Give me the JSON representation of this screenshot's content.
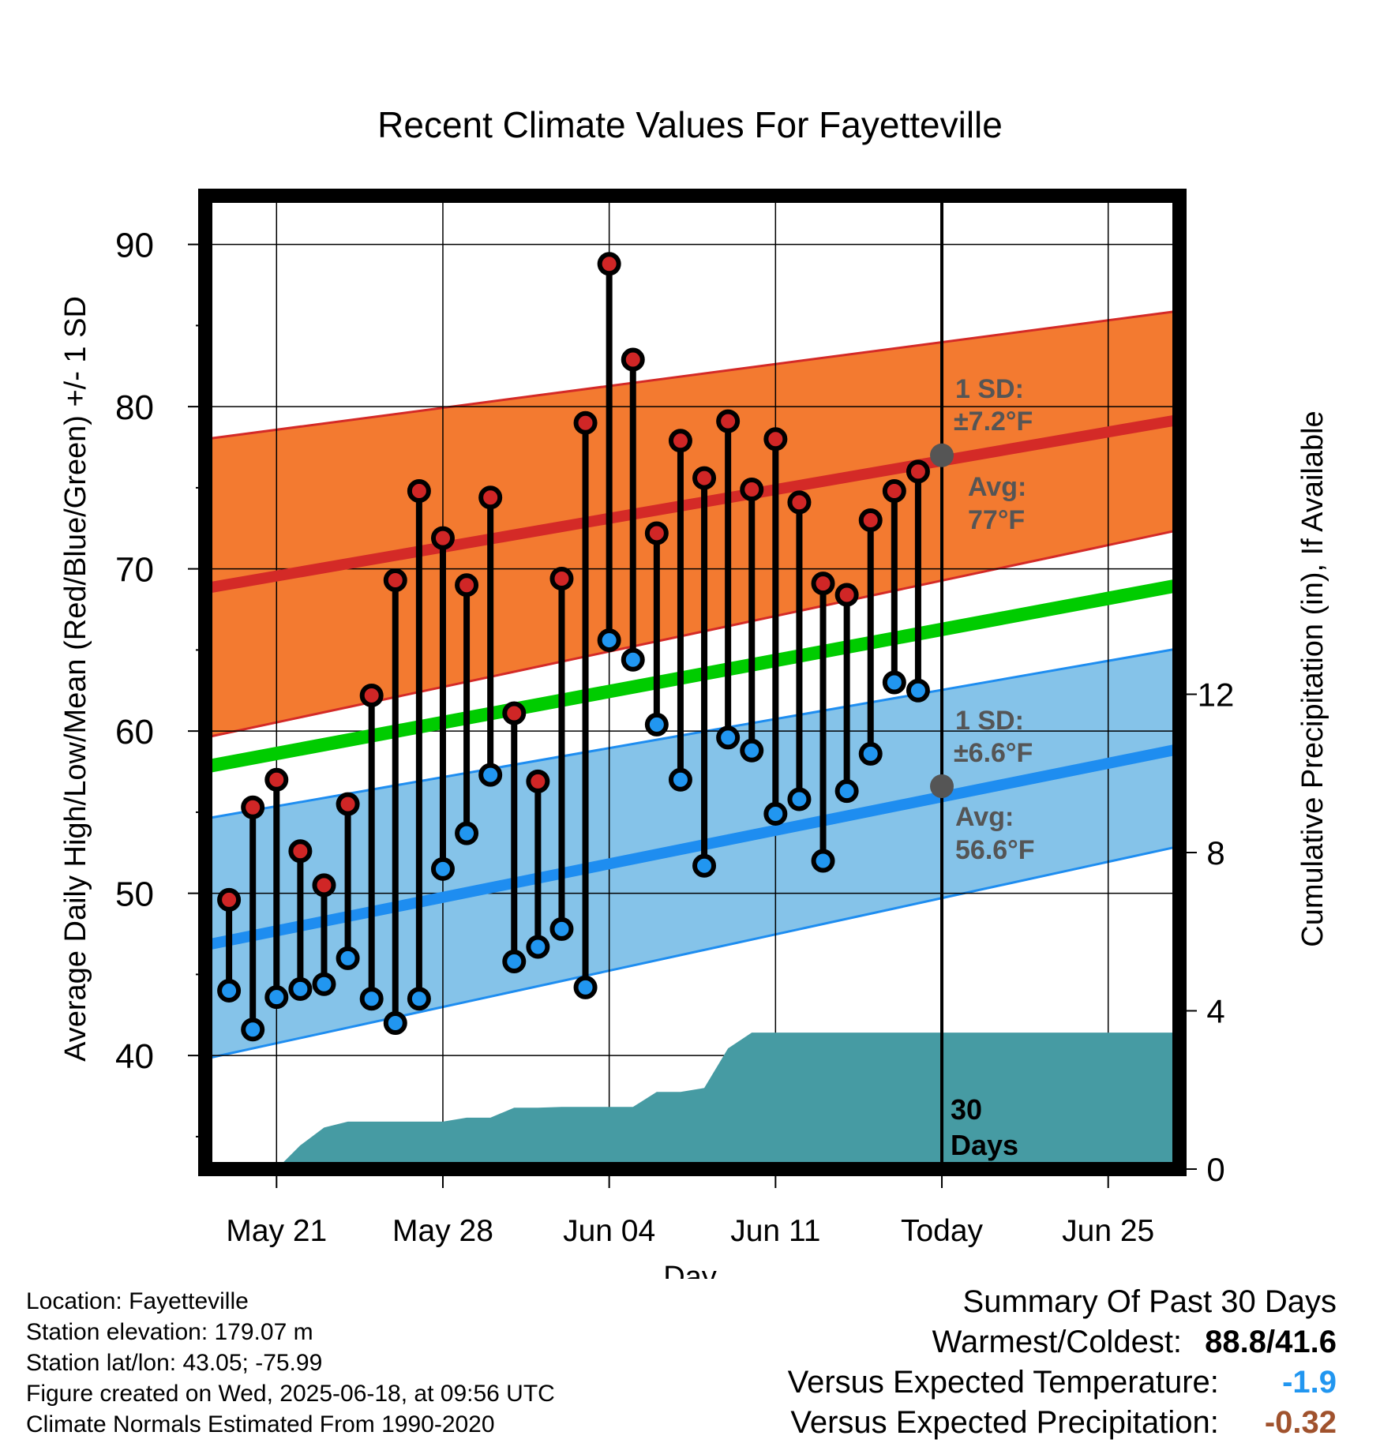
{
  "title": "Recent Climate Values For Fayetteville",
  "chart_data": {
    "type": "line",
    "title": "Recent Climate Values For Fayetteville",
    "xlabel": "Day",
    "ylabel": "Average Daily High/Low/Mean (Red/Blue/Green) +/- 1 SD",
    "y2label": "Cumulative Precipitation (in), If Available",
    "x_tick_labels": [
      "May 21",
      "May 28",
      "Jun 04",
      "Jun 11",
      "Today",
      "Jun 25"
    ],
    "x_tick_days": [
      3,
      10,
      17,
      24,
      31,
      38
    ],
    "xlim_days": [
      0,
      41
    ],
    "y_ticks": [
      40,
      50,
      60,
      70,
      80,
      90
    ],
    "ylim": [
      33,
      93
    ],
    "y2_ticks": [
      0,
      4,
      8,
      12
    ],
    "y2_tick_labels": [
      "0",
      "4",
      "8",
      "12"
    ],
    "y2lim": [
      0,
      24.6
    ],
    "today_day": 31,
    "colors": {
      "high_band": "#f37a30",
      "high_line": "#d42a27",
      "low_band": "#85c3e9",
      "low_line": "#1e8df0",
      "mean_line": "#00cc00",
      "precip": "#469ba3",
      "high_marker": "#d02626",
      "low_marker": "#2196f0",
      "avg_dot": "#555555",
      "annotation": "#555555",
      "below_normal": "#2196f0",
      "precip_departure": "#a0522d"
    },
    "normals": {
      "days": [
        0,
        41
      ],
      "avg_high": [
        68.8,
        79.2
      ],
      "high_sd_upper": [
        78.0,
        85.9
      ],
      "high_sd_lower": [
        59.6,
        72.4
      ],
      "avg_mean": [
        57.8,
        69.0
      ],
      "avg_low": [
        46.8,
        58.9
      ],
      "low_sd_upper": [
        54.6,
        65.1
      ],
      "low_sd_lower": [
        39.8,
        52.9
      ]
    },
    "series": [
      {
        "name": "High",
        "days": [
          1,
          2,
          3,
          4,
          5,
          6,
          7,
          8,
          9,
          10,
          11,
          12,
          13,
          14,
          15,
          16,
          17,
          18,
          19,
          20,
          21,
          22,
          23,
          24,
          25,
          26,
          27,
          28,
          29,
          30
        ],
        "values": [
          49.6,
          55.3,
          57.0,
          52.6,
          50.5,
          55.5,
          62.2,
          69.3,
          74.8,
          71.9,
          69.0,
          74.4,
          61.1,
          56.9,
          69.4,
          79.0,
          88.8,
          82.9,
          72.2,
          77.9,
          75.6,
          79.1,
          74.9,
          78.0,
          74.1,
          69.1,
          68.4,
          73.0,
          74.8,
          76.0
        ]
      },
      {
        "name": "Low",
        "days": [
          1,
          2,
          3,
          4,
          5,
          6,
          7,
          8,
          9,
          10,
          11,
          12,
          13,
          14,
          15,
          16,
          17,
          18,
          19,
          20,
          21,
          22,
          23,
          24,
          25,
          26,
          27,
          28,
          29,
          30
        ],
        "values": [
          44.0,
          41.6,
          43.6,
          44.1,
          44.4,
          46.0,
          43.5,
          42.0,
          43.5,
          51.5,
          53.7,
          57.3,
          45.8,
          46.7,
          47.8,
          44.2,
          65.6,
          64.4,
          60.4,
          57.0,
          51.7,
          59.6,
          58.8,
          54.9,
          55.8,
          52.0,
          56.3,
          58.6,
          63.0,
          62.5
        ]
      },
      {
        "name": "Cumulative Precipitation",
        "axis": "right",
        "days": [
          3,
          4,
          5,
          6,
          7,
          8,
          9,
          10,
          11,
          12,
          13,
          14,
          15,
          16,
          17,
          18,
          19,
          20,
          21,
          22,
          23,
          41
        ],
        "values": [
          0.0,
          0.6,
          1.05,
          1.2,
          1.2,
          1.2,
          1.2,
          1.2,
          1.3,
          1.3,
          1.55,
          1.55,
          1.57,
          1.57,
          1.57,
          1.57,
          1.95,
          1.95,
          2.05,
          3.05,
          3.45,
          3.45
        ]
      }
    ],
    "annotations": {
      "high_sd_title": "1 SD:",
      "high_sd_value": "±7.2°F",
      "high_avg_title": "Avg:",
      "high_avg_value": "77°F",
      "high_avg": 77.0,
      "low_sd_title": "1 SD:",
      "low_sd_value": "±6.6°F",
      "low_avg_title": "Avg:",
      "low_avg_value": "56.6°F",
      "low_avg": 56.6,
      "window_line1": "30",
      "window_line2": "Days"
    }
  },
  "info": {
    "location": "Location: Fayetteville",
    "elevation": "Station elevation: 179.07 m",
    "latlon": "Station lat/lon: 43.05; -75.99",
    "created": "Figure created on Wed, 2025-06-18, at 09:56 UTC",
    "normals": "Climate Normals Estimated From 1990-2020"
  },
  "summary": {
    "title": "Summary Of Past 30 Days",
    "warm_cold_label": "Warmest/Coldest:",
    "warm_cold_value": "88.8/41.6",
    "temp_label": "Versus Expected Temperature:",
    "temp_value": "-1.9",
    "precip_label": "Versus Expected Precipitation:",
    "precip_value": "-0.32"
  }
}
